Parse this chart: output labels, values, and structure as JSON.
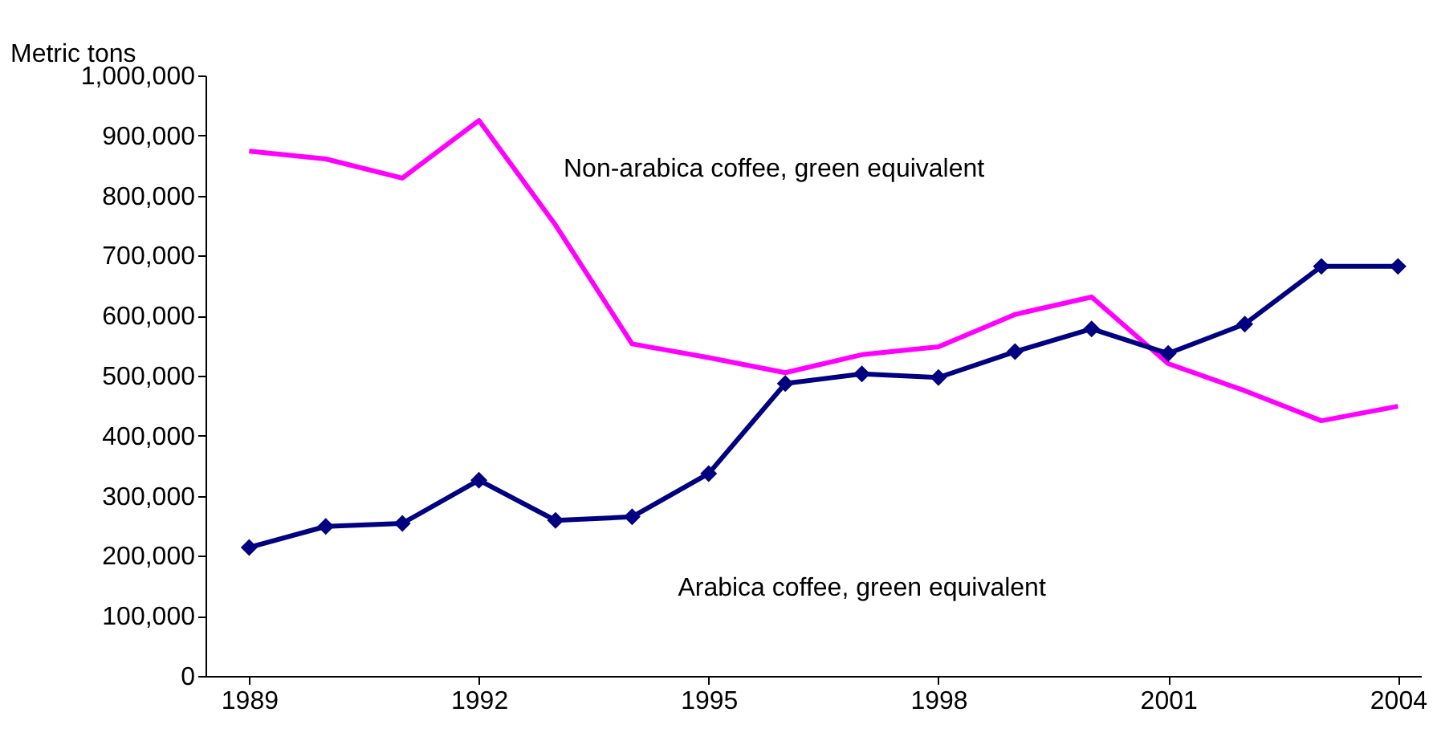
{
  "chart_data": {
    "type": "line",
    "ylabel": "Metric tons",
    "x": [
      1989,
      1990,
      1991,
      1992,
      1993,
      1994,
      1995,
      1996,
      1997,
      1998,
      1999,
      2000,
      2001,
      2002,
      2003,
      2004
    ],
    "series": [
      {
        "name": "Non-arabica coffee, green equivalent",
        "color": "#ff00ff",
        "marker": "none",
        "values": [
          874000,
          861000,
          829000,
          925000,
          751000,
          553000,
          530000,
          505000,
          535000,
          548000,
          602000,
          631000,
          520000,
          475000,
          425000,
          449000
        ]
      },
      {
        "name": "Arabica coffee, green equivalent",
        "color": "#000080",
        "marker": "diamond",
        "values": [
          214000,
          249000,
          254000,
          326000,
          259000,
          265000,
          337000,
          487000,
          503000,
          497000,
          540000,
          578000,
          537000,
          586000,
          682000,
          682000
        ]
      }
    ],
    "xlim": [
      1988.43,
      2004.3
    ],
    "xticks": [
      1989,
      1992,
      1995,
      1998,
      2001,
      2004
    ],
    "ylim": [
      0,
      1000000
    ],
    "yticks": [
      0,
      {
        "value": 100000,
        "label": "100,000"
      },
      {
        "value": 200000,
        "label": "200,000"
      },
      {
        "value": 300000,
        "label": "300,000"
      },
      {
        "value": 400000,
        "label": "400,000"
      },
      {
        "value": 500000,
        "label": "500,000"
      },
      {
        "value": 600000,
        "label": "600,000"
      },
      {
        "value": 700000,
        "label": "700,000"
      },
      {
        "value": 800000,
        "label": "800,000"
      },
      {
        "value": 900000,
        "label": "900,000"
      },
      {
        "value": 1000000,
        "label": "1,000,000"
      }
    ],
    "legend": false
  }
}
